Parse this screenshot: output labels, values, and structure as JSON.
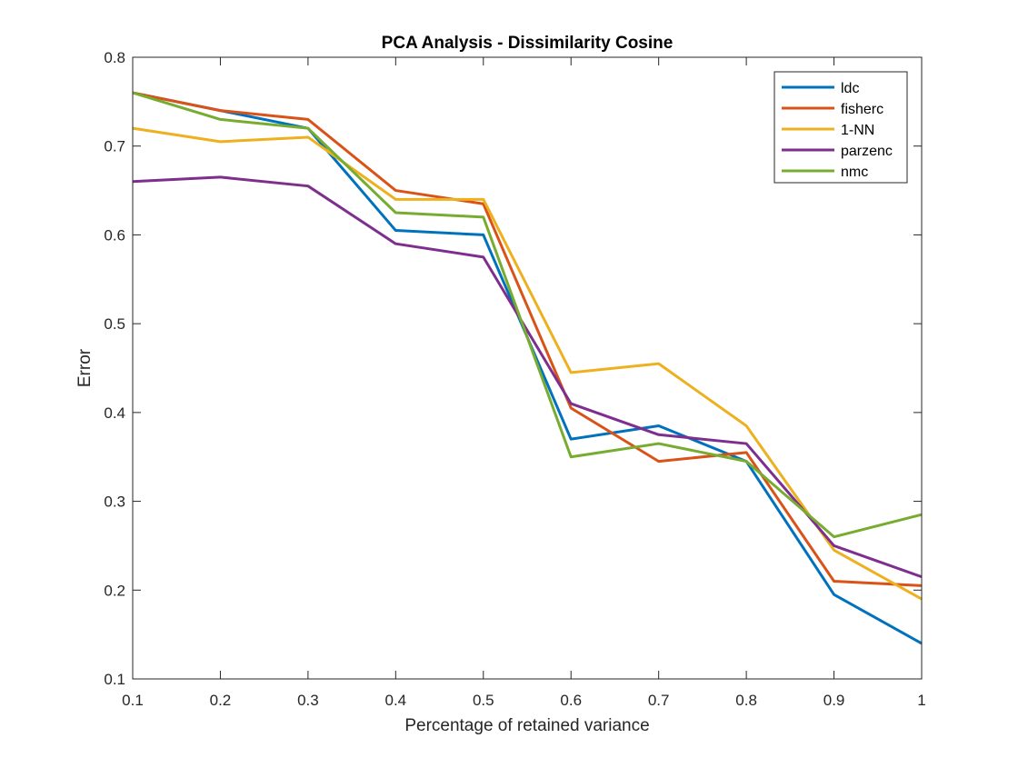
{
  "chart_data": {
    "type": "line",
    "title": "PCA Analysis - Dissimilarity Cosine",
    "xlabel": "Percentage of retained variance",
    "ylabel": "Error",
    "xlim": [
      0.1,
      1
    ],
    "ylim": [
      0.1,
      0.8
    ],
    "xticks": [
      0.1,
      0.2,
      0.3,
      0.4,
      0.5,
      0.6,
      0.7,
      0.8,
      0.9,
      1
    ],
    "xtick_labels": [
      "0.1",
      "0.2",
      "0.3",
      "0.4",
      "0.5",
      "0.6",
      "0.7",
      "0.8",
      "0.9",
      "1"
    ],
    "yticks": [
      0.1,
      0.2,
      0.3,
      0.4,
      0.5,
      0.6,
      0.7,
      0.8
    ],
    "ytick_labels": [
      "0.1",
      "0.2",
      "0.3",
      "0.4",
      "0.5",
      "0.6",
      "0.7",
      "0.8"
    ],
    "grid": false,
    "legend_position": "top-right",
    "x": [
      0.1,
      0.2,
      0.3,
      0.4,
      0.5,
      0.6,
      0.7,
      0.8,
      0.9,
      1.0
    ],
    "series": [
      {
        "name": "ldc",
        "color": "#0072BD",
        "values": [
          0.76,
          0.74,
          0.72,
          0.605,
          0.6,
          0.37,
          0.385,
          0.345,
          0.195,
          0.14
        ]
      },
      {
        "name": "fisherc",
        "color": "#D95319",
        "values": [
          0.76,
          0.74,
          0.73,
          0.65,
          0.635,
          0.405,
          0.345,
          0.355,
          0.21,
          0.205
        ]
      },
      {
        "name": "1-NN",
        "color": "#EDB120",
        "values": [
          0.72,
          0.705,
          0.71,
          0.64,
          0.64,
          0.445,
          0.455,
          0.385,
          0.245,
          0.19
        ]
      },
      {
        "name": "parzenc",
        "color": "#7E2F8E",
        "values": [
          0.66,
          0.665,
          0.655,
          0.59,
          0.575,
          0.41,
          0.375,
          0.365,
          0.25,
          0.215
        ]
      },
      {
        "name": "nmc",
        "color": "#77AC30",
        "values": [
          0.76,
          0.73,
          0.72,
          0.625,
          0.62,
          0.35,
          0.365,
          0.345,
          0.26,
          0.285
        ]
      }
    ]
  }
}
